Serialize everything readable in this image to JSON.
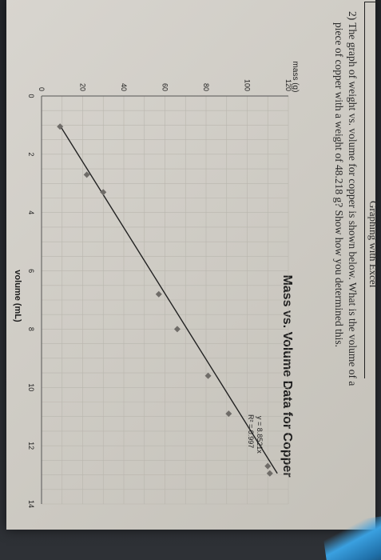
{
  "header": {
    "title": "Graphing with Excel"
  },
  "question": {
    "line1": "2) The graph of weight vs. volume for copper is shown below. What is the volume of a",
    "line2": "piece of copper with a weight of 48.218 g? Show how you determined this."
  },
  "chart_data": {
    "type": "scatter",
    "title": "Mass vs. Volume Data for Copper",
    "xlabel": "volume (mL)",
    "ylabel": "mass (g)",
    "xlim": [
      0,
      14
    ],
    "ylim": [
      0,
      120
    ],
    "x_ticks": [
      "0",
      "2",
      "4",
      "6",
      "8",
      "10",
      "12",
      "14"
    ],
    "y_ticks": [
      "0",
      "20",
      "40",
      "60",
      "80",
      "100",
      "120"
    ],
    "grid": true,
    "points": [
      {
        "x": 1.05,
        "y": 9.0
      },
      {
        "x": 2.7,
        "y": 22.0
      },
      {
        "x": 3.3,
        "y": 30.0
      },
      {
        "x": 6.8,
        "y": 57.0
      },
      {
        "x": 8.0,
        "y": 66.0
      },
      {
        "x": 9.6,
        "y": 81.0
      },
      {
        "x": 10.9,
        "y": 91.0
      },
      {
        "x": 12.7,
        "y": 110.0
      },
      {
        "x": 12.95,
        "y": 111.0
      }
    ],
    "trendline": {
      "slope": 8.8521,
      "equation": "y = 8.8521x",
      "r_squared": "R² = 0.997"
    }
  }
}
